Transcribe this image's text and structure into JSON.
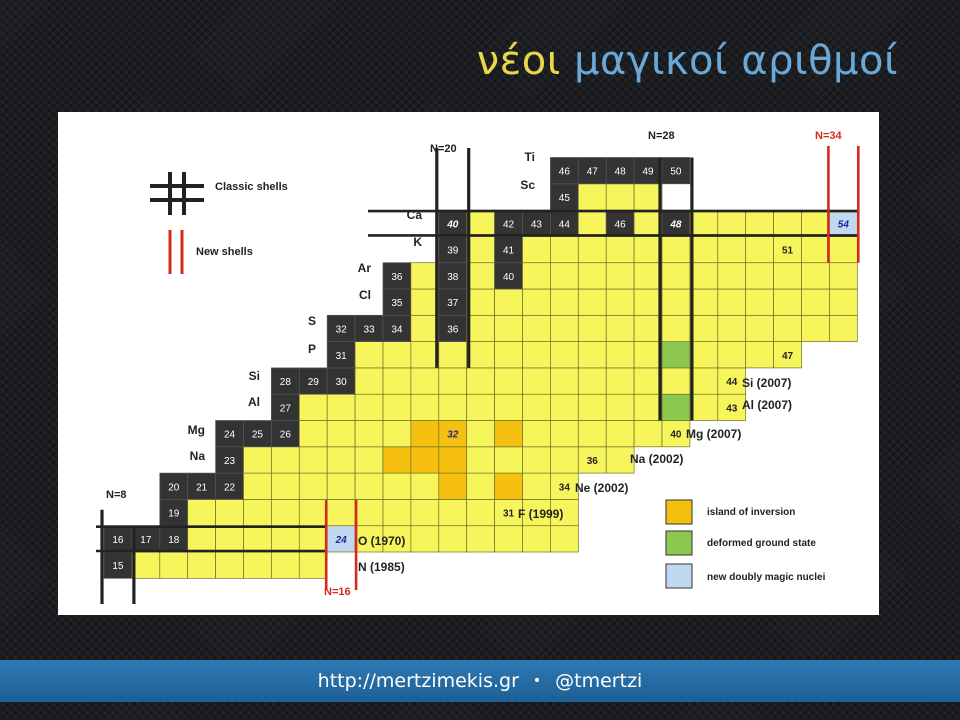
{
  "title": {
    "word1": "νέοι",
    "word2": "μαγικοί αριθμοί"
  },
  "legend": {
    "classic": "Classic shells",
    "new": "New shells",
    "island": "island of inversion",
    "deformed": "deformed ground state",
    "doubly_magic": "new doubly magic nuclei"
  },
  "shell_labels": {
    "n8": "N=8",
    "n16": "N=16",
    "n20": "N=20",
    "n28": "N=28",
    "n34": "N=34"
  },
  "elements": [
    "Ti",
    "Sc",
    "Ca",
    "K",
    "Ar",
    "Cl",
    "S",
    "P",
    "Si",
    "Al",
    "Mg",
    "Na"
  ],
  "annotations": {
    "si": "Si (2007)",
    "al": "Al (2007)",
    "mg": "Mg (2007)",
    "na": "Na (2002)",
    "ne": "Ne (2002)",
    "f": "F (1999)",
    "o": "O (1970)",
    "n": "N (1985)"
  },
  "colors": {
    "stable": "#333333",
    "unstable": "#f7f55c",
    "island": "#f6c010",
    "deformed": "#8cc850",
    "doubly_magic": "#c0d8f0",
    "classic_line": "#222222",
    "new_line": "#d62a1c"
  },
  "footer": {
    "url": "http://mertzimekis.gr",
    "sep": "•",
    "handle": "@tmertzi"
  }
}
